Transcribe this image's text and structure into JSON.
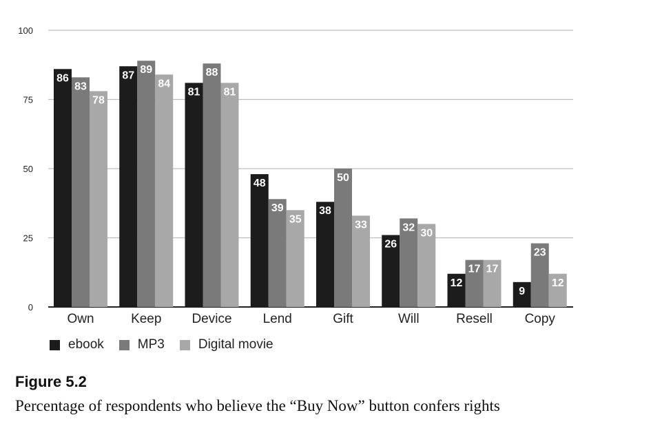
{
  "chart_data": {
    "type": "bar",
    "categories": [
      "Own",
      "Keep",
      "Device",
      "Lend",
      "Gift",
      "Will",
      "Resell",
      "Copy"
    ],
    "series": [
      {
        "name": "ebook",
        "color": "#1c1c1c",
        "values": [
          86,
          87,
          81,
          48,
          38,
          26,
          12,
          9
        ]
      },
      {
        "name": "MP3",
        "color": "#7a7a7a",
        "values": [
          83,
          89,
          88,
          39,
          50,
          32,
          17,
          23
        ]
      },
      {
        "name": "Digital movie",
        "color": "#a8a8a8",
        "values": [
          78,
          84,
          81,
          35,
          33,
          30,
          17,
          12
        ]
      }
    ],
    "ylim": [
      0,
      100
    ],
    "yticks": [
      "0",
      "25",
      "50",
      "75",
      "100"
    ],
    "grid": true,
    "legend_position": "bottom-left",
    "xlabel": "",
    "ylabel": ""
  },
  "figure": {
    "number": "Figure 5.2",
    "caption": "Percentage of respondents who believe the “Buy Now” button confers rights"
  }
}
